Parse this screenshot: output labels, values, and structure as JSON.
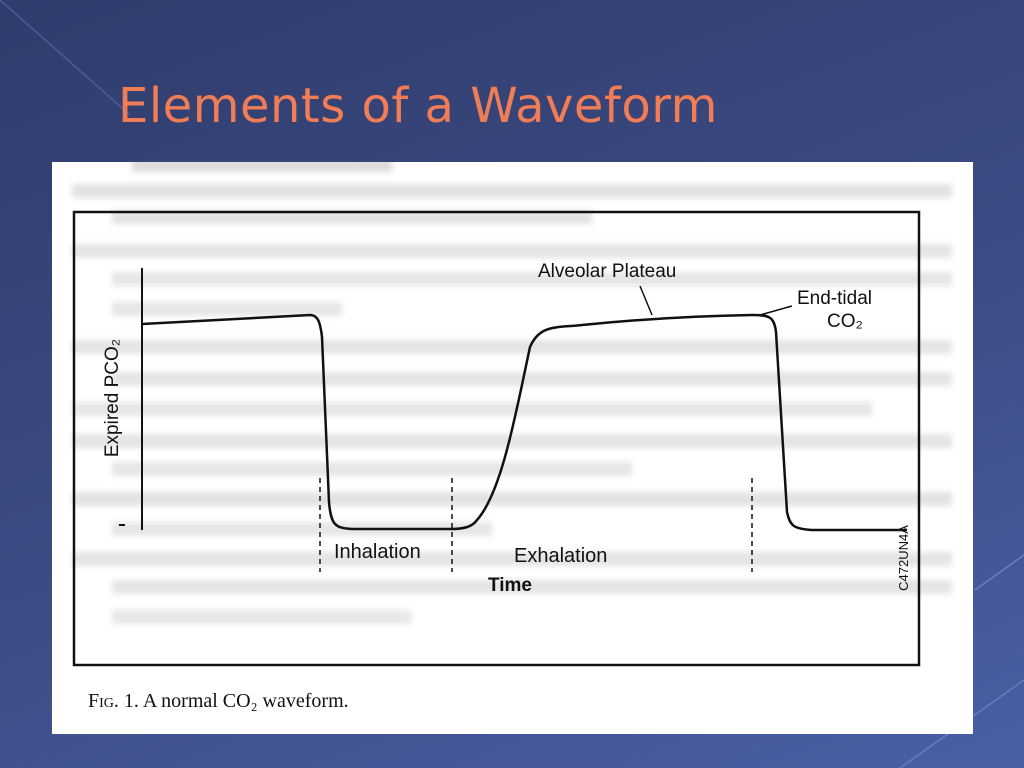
{
  "slide": {
    "title": "Elements of a Waveform",
    "title_color": "#f07d55",
    "background_color": "#343f70"
  },
  "figure": {
    "y_axis_label": "Expired PCO₂",
    "x_axis_label": "Time",
    "phase_labels": {
      "inhalation": "Inhalation",
      "exhalation": "Exhalation"
    },
    "annotations": {
      "alveolar_plateau": "Alveolar Plateau",
      "end_tidal_line1": "End-tidal",
      "end_tidal_line2": "CO₂"
    },
    "figure_code": "C472UN4A",
    "caption_prefix": "Fig. 1.",
    "caption_text": "A normal CO₂ waveform."
  }
}
